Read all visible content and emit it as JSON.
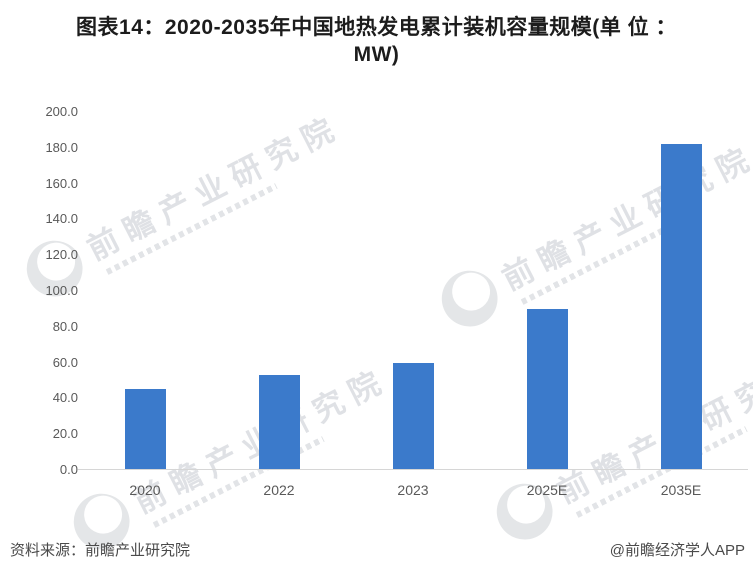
{
  "title": {
    "line1": "图表14：2020-2035年中国地热发电累计装机容量规模(单 位 ：",
    "line2": "MW)"
  },
  "chart_data": {
    "type": "bar",
    "title": "图表14：2020-2035年中国地热发电累计装机容量规模(单位：MW)",
    "categories": [
      "2020",
      "2022",
      "2023",
      "2025E",
      "2035E"
    ],
    "values": [
      45,
      53,
      60,
      90,
      182
    ],
    "xlabel": "",
    "ylabel": "",
    "ylim": [
      0,
      200
    ],
    "yticks": [
      0,
      20,
      40,
      60,
      80,
      100,
      120,
      140,
      160,
      180,
      200
    ],
    "ytick_labels": [
      "0.0",
      "20.0",
      "40.0",
      "60.0",
      "80.0",
      "100.0",
      "120.0",
      "140.0",
      "160.0",
      "180.0",
      "200.0"
    ],
    "bar_color": "#3b7acb",
    "grid": false,
    "legend": false
  },
  "footer": {
    "source": "资料来源：前瞻产业研究院",
    "credit": "@前瞻经济学人APP"
  },
  "watermark": {
    "text": "前瞻产业研究院",
    "logo": "qianzhan-swoosh-icon"
  },
  "colors": {
    "bar": "#3b7acb",
    "axis_line": "#d6d6d6",
    "tick_text": "#595959",
    "title_text": "#1c1c1c",
    "footer_text": "#4a4a4a",
    "watermark": "rgba(150,157,168,0.30)"
  }
}
